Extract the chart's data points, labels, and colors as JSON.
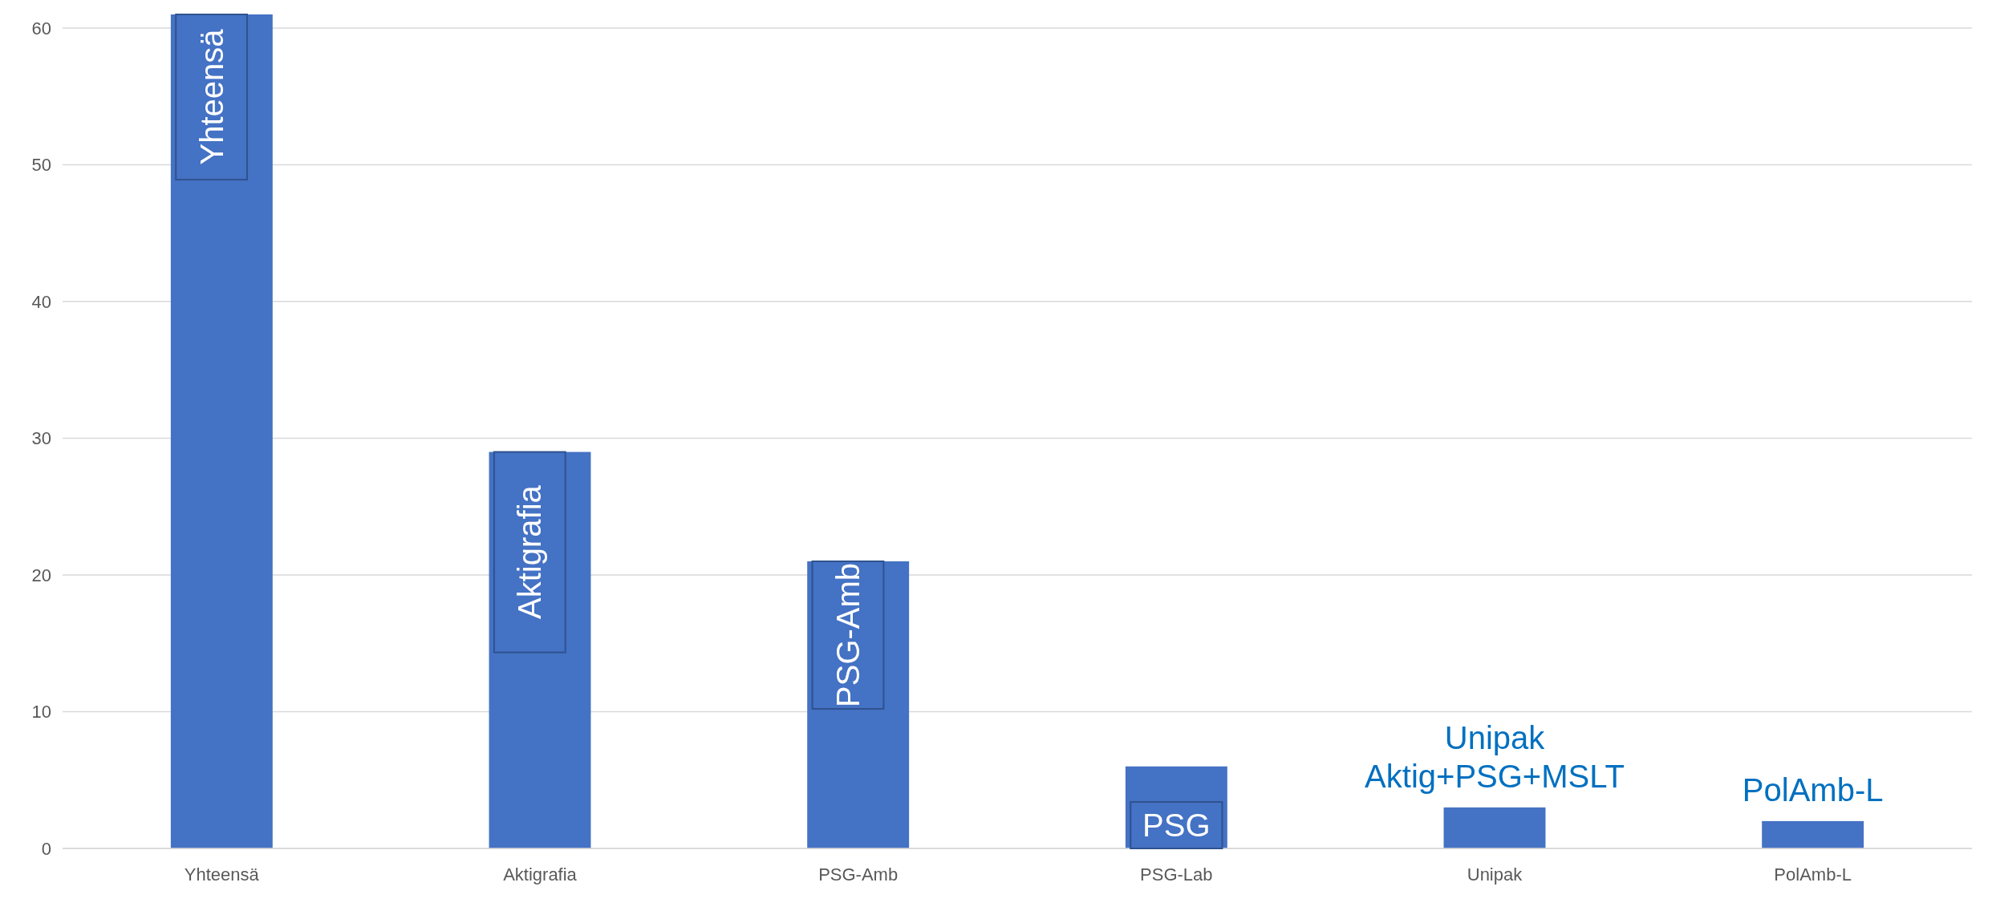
{
  "chart_data": {
    "type": "bar",
    "categories": [
      "Yhteensä",
      "Aktigrafia",
      "PSG-Amb",
      "PSG-Lab",
      "Unipak",
      "PolAmb-L"
    ],
    "values": [
      61,
      29,
      21,
      6,
      3,
      2
    ],
    "color": "#4472c4",
    "ylim": [
      0,
      61
    ],
    "yticks": [
      0,
      10,
      20,
      30,
      40,
      50,
      60
    ],
    "grid": "y",
    "annotations": [
      "Yhteensä",
      "Aktigrafia",
      "PSG-Amb",
      "PSG",
      "Unipak\nAktig+PSG+MSLT",
      "PolAmb-L"
    ]
  }
}
